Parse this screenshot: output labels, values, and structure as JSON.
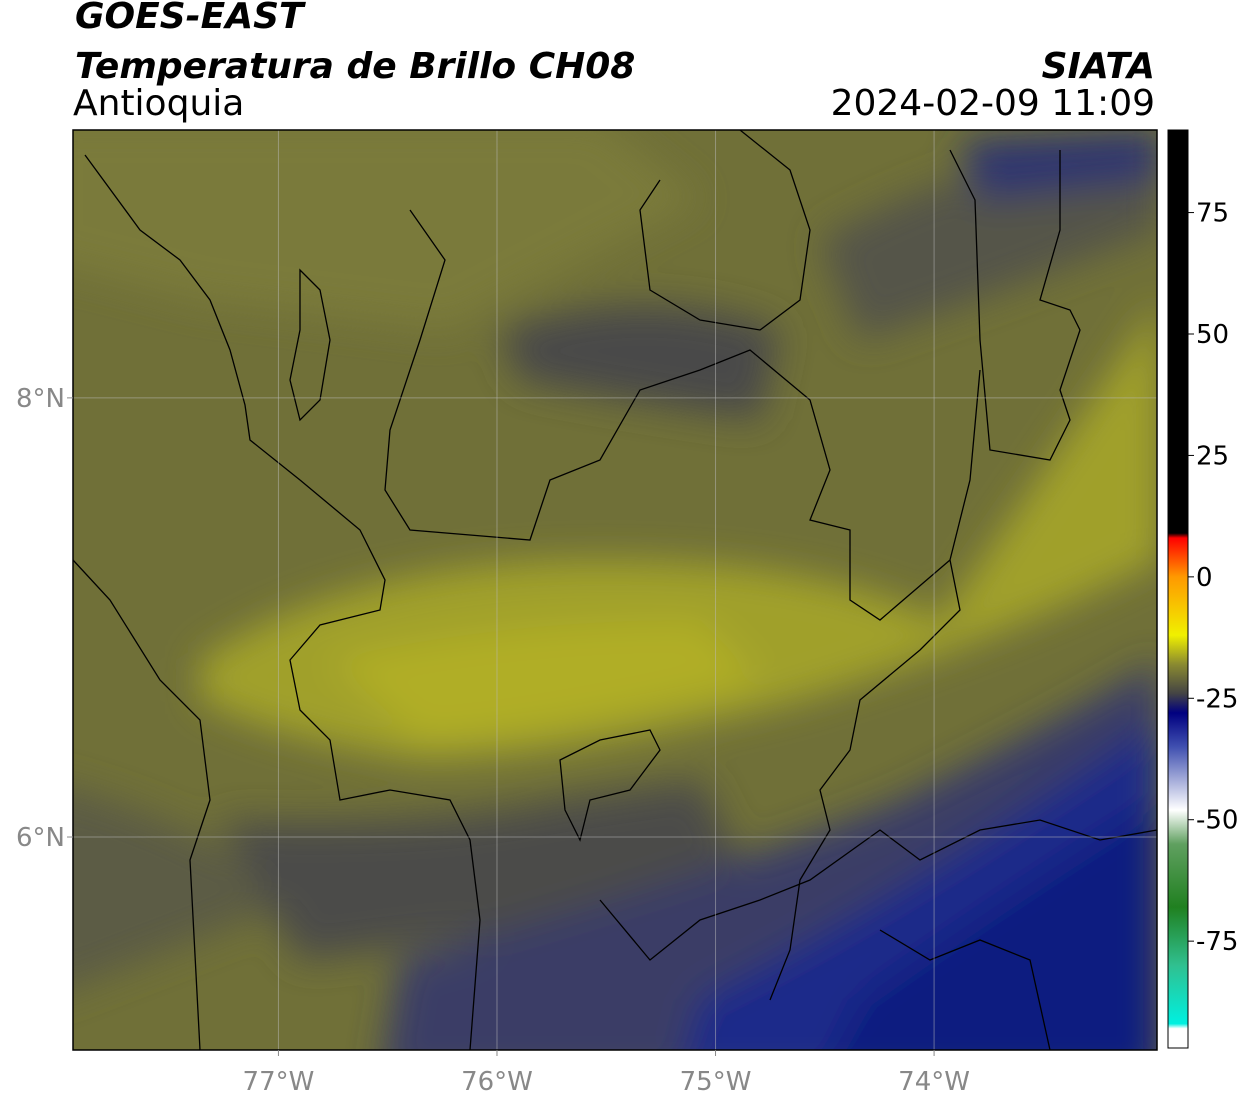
{
  "header": {
    "satellite": "GOES-EAST",
    "product": "Temperatura de Brillo CH08",
    "agency": "SIATA",
    "region": "Antioquia",
    "datetime": "2024-02-09 11:09"
  },
  "map": {
    "xlim": [
      -77.94,
      -72.98
    ],
    "ylim": [
      5.03,
      9.22
    ],
    "xticks": [
      {
        "value": -77,
        "label": "77°W"
      },
      {
        "value": -76,
        "label": "76°W"
      },
      {
        "value": -75,
        "label": "75°W"
      },
      {
        "value": -74,
        "label": "74°W"
      }
    ],
    "yticks": [
      {
        "value": 8,
        "label": "8°N"
      },
      {
        "value": 6,
        "label": "6°N"
      }
    ],
    "grid": true
  },
  "colorbar": {
    "lim": [
      -97,
      92
    ],
    "ticks": [
      75,
      50,
      25,
      0,
      -25,
      -50,
      -75
    ],
    "colormap": [
      [
        92,
        "#000000"
      ],
      [
        9,
        "#000000"
      ],
      [
        8,
        "#ff0000"
      ],
      [
        0,
        "#ff9900"
      ],
      [
        -12,
        "#f0f000"
      ],
      [
        -18,
        "#8a8a30"
      ],
      [
        -24,
        "#444444"
      ],
      [
        -28,
        "#000080"
      ],
      [
        -35,
        "#4050b0"
      ],
      [
        -48,
        "#ffffff"
      ],
      [
        -55,
        "#60a060"
      ],
      [
        -68,
        "#208020"
      ],
      [
        -80,
        "#30c090"
      ],
      [
        -92,
        "#00f0e0"
      ],
      [
        -93,
        "#ffffff"
      ],
      [
        -97,
        "#ffffff"
      ]
    ]
  }
}
